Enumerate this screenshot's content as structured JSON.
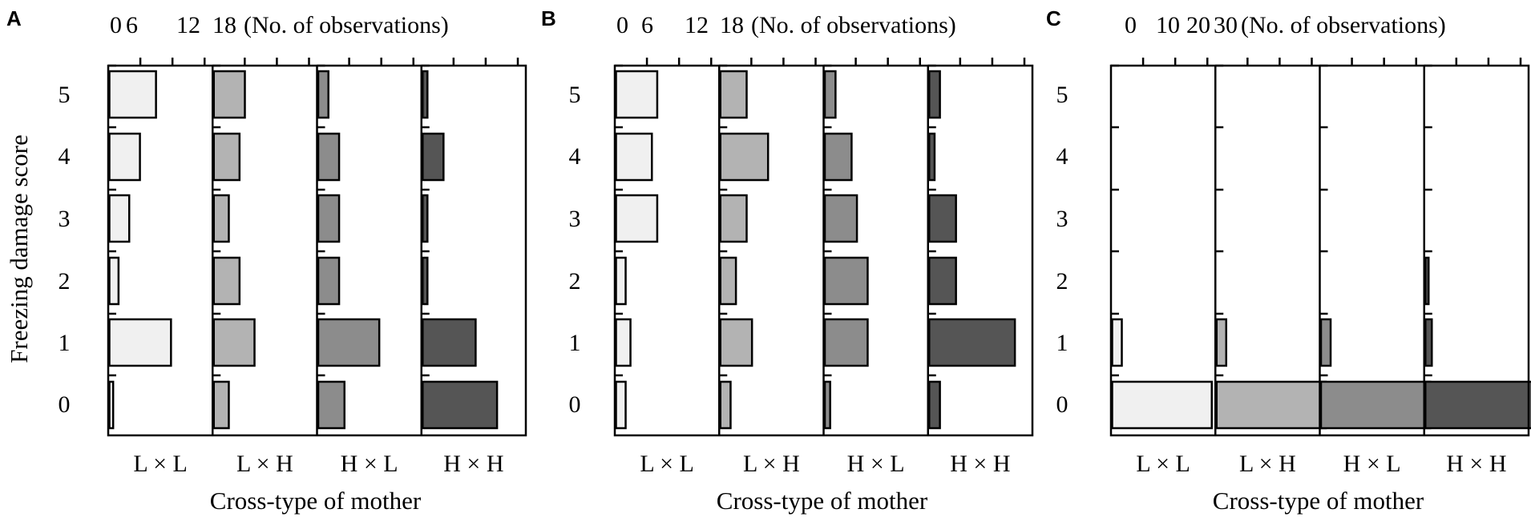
{
  "figure": {
    "ylabel": "Freezing damage score",
    "yticks": [
      "0",
      "1",
      "2",
      "3",
      "4",
      "5"
    ]
  },
  "colors": [
    "#f0f0f0",
    "#b3b3b3",
    "#8c8c8c",
    "#555555"
  ],
  "chart_data": [
    {
      "type": "bar",
      "orientation": "horizontal",
      "panel": "A",
      "top_axis_ticks": [
        "0",
        "6",
        "12",
        "18"
      ],
      "top_axis_label": "(No. of observations)",
      "tick_step": 6,
      "xlabel": "Cross-type of mother",
      "categories": [
        "0",
        "1",
        "2",
        "3",
        "4",
        "5"
      ],
      "series": [
        {
          "name": "L × L",
          "values": [
            0.7,
            11.5,
            1.7,
            3.7,
            5.7,
            8.7
          ]
        },
        {
          "name": "L × H",
          "values": [
            2.8,
            7.6,
            4.8,
            2.8,
            4.8,
            5.8
          ]
        },
        {
          "name": "H × L",
          "values": [
            4.9,
            11.4,
            3.9,
            3.9,
            3.9,
            1.9
          ]
        },
        {
          "name": "H × H",
          "values": [
            13.9,
            9.9,
            0.9,
            0.9,
            3.9,
            0.9
          ]
        }
      ],
      "xlim": [
        0,
        18
      ]
    },
    {
      "type": "bar",
      "orientation": "horizontal",
      "panel": "B",
      "top_axis_ticks": [
        "0",
        "6",
        "12",
        "18"
      ],
      "top_axis_label": "(No. of observations)",
      "tick_step": 6,
      "xlabel": "Cross-type of mother",
      "categories": [
        "0",
        "1",
        "2",
        "3",
        "4",
        "5"
      ],
      "series": [
        {
          "name": "L × L",
          "values": [
            1.8,
            2.7,
            1.8,
            7.7,
            6.7,
            7.7
          ]
        },
        {
          "name": "L × H",
          "values": [
            1.9,
            5.9,
            2.9,
            4.9,
            8.9,
            4.9
          ]
        },
        {
          "name": "H × L",
          "values": [
            1.0,
            8.0,
            8.0,
            6.0,
            5.0,
            2.0
          ]
        },
        {
          "name": "H × H",
          "values": [
            2.0,
            16.0,
            5.0,
            5.0,
            1.0,
            2.0
          ]
        }
      ],
      "xlim": [
        0,
        18
      ]
    },
    {
      "type": "bar",
      "orientation": "horizontal",
      "panel": "C",
      "top_axis_ticks": [
        "0",
        "10",
        "20",
        "30"
      ],
      "top_axis_label": "(No. of observations)",
      "tick_step": 10,
      "xlabel": "Cross-type of mother",
      "categories": [
        "0",
        "1",
        "2",
        "3",
        "4",
        "5"
      ],
      "series": [
        {
          "name": "L × L",
          "values": [
            31,
            3,
            0,
            0,
            0,
            0
          ]
        },
        {
          "name": "L × H",
          "values": [
            34,
            3,
            0,
            0,
            0,
            0
          ]
        },
        {
          "name": "H × L",
          "values": [
            34,
            3,
            0,
            0,
            0,
            0
          ]
        },
        {
          "name": "H × H",
          "values": [
            35,
            2,
            1,
            0,
            0,
            0
          ]
        }
      ],
      "xlim": [
        0,
        30
      ]
    }
  ]
}
